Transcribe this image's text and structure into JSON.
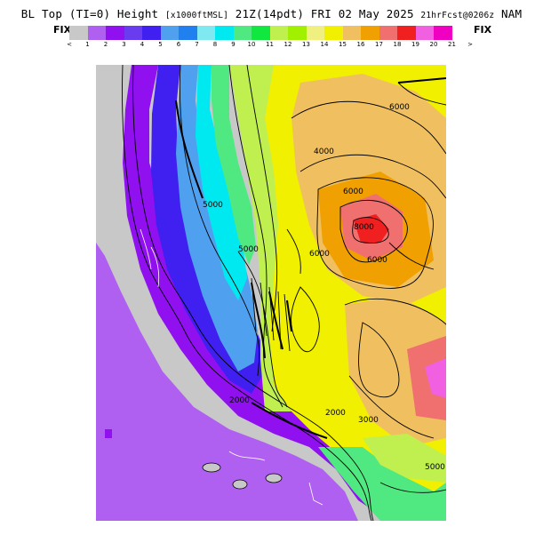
{
  "header": {
    "title_left": "BL Top (TI=0) Height",
    "title_units": "[x1000ftMSL]",
    "title_time": "21Z(14pdt)",
    "title_date": "FRI 02 May 2025",
    "title_run": "21hrFcst@0206z",
    "title_model": "NAM",
    "fix_left": "FIX",
    "fix_right": "FIX"
  },
  "colorbar": {
    "colors": [
      "#c8c8c8",
      "#b060f0",
      "#9010f0",
      "#6a3cf0",
      "#4020f0",
      "#50a0f0",
      "#2080f0",
      "#80e8f0",
      "#00e8f0",
      "#50e880",
      "#10e840",
      "#c0f050",
      "#a0f000",
      "#f0f080",
      "#f0f000",
      "#f0c060",
      "#f0a000",
      "#f07070",
      "#f02020",
      "#f060e0",
      "#f000c0"
    ],
    "tick_labels": [
      "<",
      "1",
      "2",
      "3",
      "4",
      "5",
      "6",
      "7",
      "8",
      "9",
      "10",
      "11",
      "12",
      "13",
      "14",
      "15",
      "16",
      "17",
      "18",
      "19",
      "20",
      "21",
      ">"
    ]
  },
  "map": {
    "ocean_color": "#b060f0",
    "land_low_color": "#c8c8c8",
    "contour_labels": [
      "6000",
      "6000",
      "6000",
      "6000",
      "5000",
      "4000",
      "5000",
      "8000",
      "2000",
      "2000",
      "3000",
      "5000"
    ]
  }
}
